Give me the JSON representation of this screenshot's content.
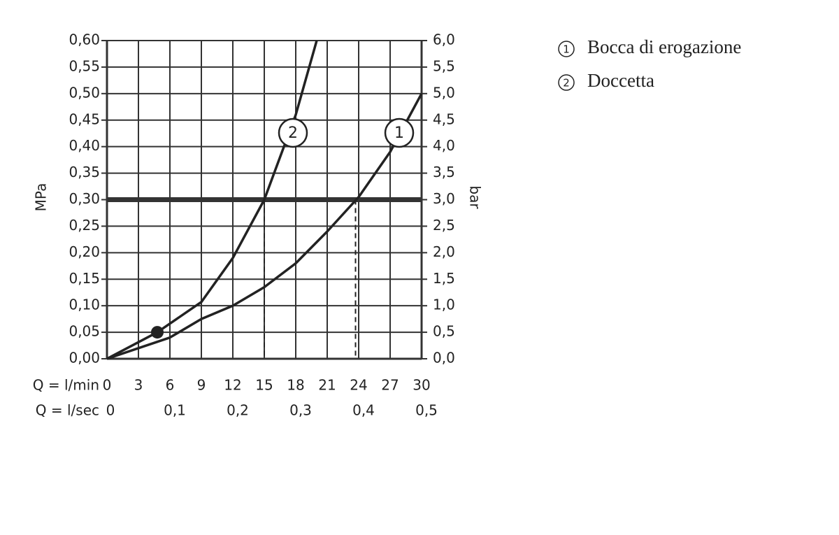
{
  "chart_data": {
    "type": "line",
    "x_label": "Q = l/min",
    "x2_label": "Q = l/sec",
    "y_label": "MPa",
    "y2_label": "bar",
    "xlim": [
      0,
      30
    ],
    "xticks": [
      0,
      3,
      6,
      9,
      12,
      15,
      18,
      21,
      24,
      27,
      30
    ],
    "x2lim": [
      0,
      0.5
    ],
    "x2ticks": [
      0,
      {
        "value": 0.1,
        "label": "0,1"
      },
      {
        "value": 0.2,
        "label": "0,2"
      },
      {
        "value": 0.3,
        "label": "0,3"
      },
      {
        "value": 0.4,
        "label": "0,4"
      },
      {
        "value": 0.5,
        "label": "0,5"
      }
    ],
    "ylim": [
      0,
      0.6
    ],
    "yticks": [
      {
        "value": 0,
        "label": "0,00"
      },
      {
        "value": 0.05,
        "label": "0,05"
      },
      {
        "value": 0.1,
        "label": "0,10"
      },
      {
        "value": 0.15,
        "label": "0,15"
      },
      {
        "value": 0.2,
        "label": "0,20"
      },
      {
        "value": 0.25,
        "label": "0,25"
      },
      {
        "value": 0.3,
        "label": "0,30"
      },
      {
        "value": 0.35,
        "label": "0,35"
      },
      {
        "value": 0.4,
        "label": "0,40"
      },
      {
        "value": 0.45,
        "label": "0,45"
      },
      {
        "value": 0.5,
        "label": "0,50"
      },
      {
        "value": 0.55,
        "label": "0,55"
      },
      {
        "value": 0.6,
        "label": "0,60"
      }
    ],
    "y2lim": [
      0,
      6
    ],
    "y2ticks": [
      {
        "value": 0,
        "label": "0,0"
      },
      {
        "value": 0.5,
        "label": "0,5"
      },
      {
        "value": 1,
        "label": "1,0"
      },
      {
        "value": 1.5,
        "label": "1,5"
      },
      {
        "value": 2,
        "label": "2,0"
      },
      {
        "value": 2.5,
        "label": "2,5"
      },
      {
        "value": 3,
        "label": "3,0"
      },
      {
        "value": 3.5,
        "label": "3,5"
      },
      {
        "value": 4,
        "label": "4,0"
      },
      {
        "value": 4.5,
        "label": "4,5"
      },
      {
        "value": 5,
        "label": "5,0"
      },
      {
        "value": 5.5,
        "label": "5,5"
      },
      {
        "value": 6,
        "label": "6,0"
      }
    ],
    "grid": true,
    "reference_line": 0.3,
    "drop_lines_x": [
      15,
      23.7
    ],
    "point": {
      "x": 4.8,
      "y": 0.05
    },
    "series": [
      {
        "name": "Bocca di erogazione",
        "label": "1",
        "color": "#222",
        "x": [
          0,
          6,
          9,
          12,
          15,
          18,
          21,
          24,
          27,
          30
        ],
        "values": [
          0,
          0.04,
          0.075,
          0.1,
          0.135,
          0.18,
          0.24,
          0.305,
          0.39,
          0.5
        ]
      },
      {
        "name": "Doccetta",
        "label": "2",
        "color": "#222",
        "x": [
          0,
          4.8,
          9,
          12,
          15,
          18,
          20
        ],
        "values": [
          0,
          0.05,
          0.107,
          0.19,
          0.3,
          0.46,
          0.6
        ]
      }
    ]
  }
}
